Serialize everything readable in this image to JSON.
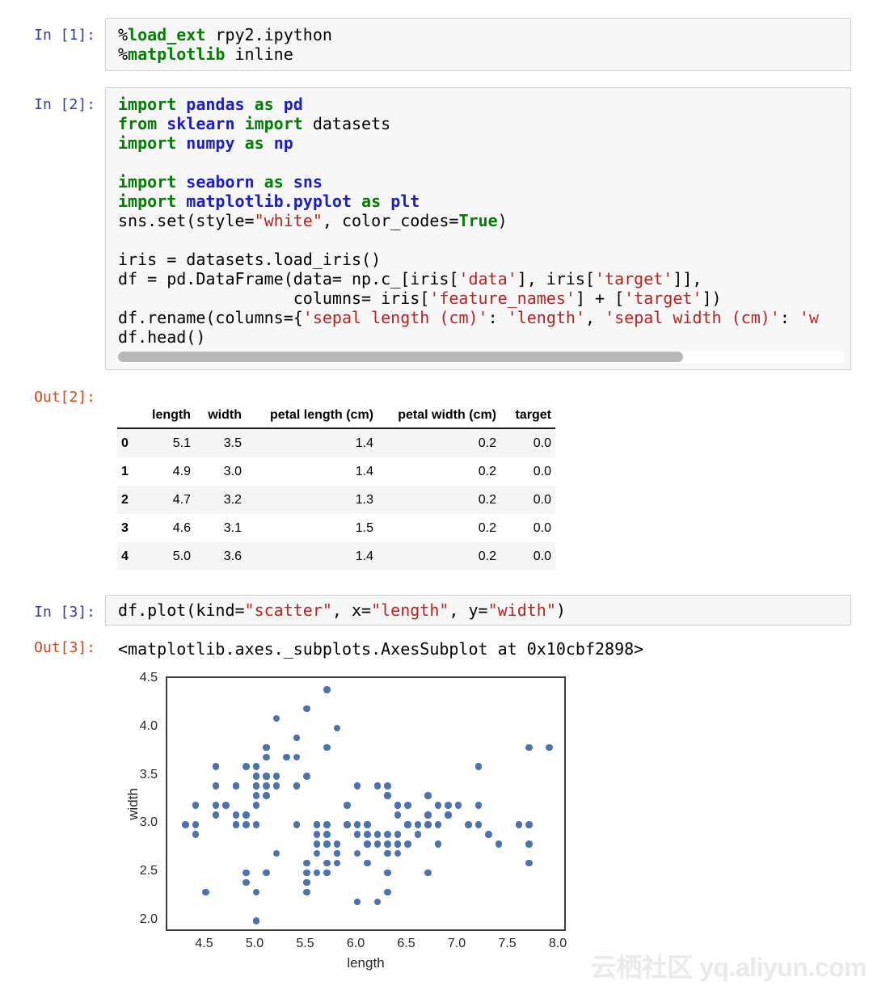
{
  "prompts": {
    "in1": "In [1]:",
    "in2": "In [2]:",
    "in3": "In [3]:",
    "out2": "Out[2]:",
    "out3": "Out[3]:"
  },
  "colors": {
    "in_prompt": "#303F9F",
    "out_prompt": "#D84315",
    "keyword": "#008000",
    "module": "#1c1ccf",
    "string": "#BA2121",
    "cell_bg": "#f7f7f7",
    "cell_border": "#cfcfcf",
    "marker": "#4C72B0"
  },
  "cells": {
    "in1": [
      [
        [
          "o",
          "%"
        ],
        [
          "m",
          "load_ext"
        ],
        [
          "o",
          " rpy2.ipython"
        ]
      ],
      [
        [
          "o",
          "%"
        ],
        [
          "m",
          "matplotlib"
        ],
        [
          "o",
          " inline"
        ]
      ]
    ],
    "in2": [
      [
        [
          "k",
          "import"
        ],
        [
          "o",
          " "
        ],
        [
          "d",
          "pandas"
        ],
        [
          "o",
          " "
        ],
        [
          "k",
          "as"
        ],
        [
          "o",
          " "
        ],
        [
          "d",
          "pd"
        ]
      ],
      [
        [
          "k",
          "from"
        ],
        [
          "o",
          " "
        ],
        [
          "d",
          "sklearn"
        ],
        [
          "o",
          " "
        ],
        [
          "k",
          "import"
        ],
        [
          "o",
          " datasets"
        ]
      ],
      [
        [
          "k",
          "import"
        ],
        [
          "o",
          " "
        ],
        [
          "d",
          "numpy"
        ],
        [
          "o",
          " "
        ],
        [
          "k",
          "as"
        ],
        [
          "o",
          " "
        ],
        [
          "d",
          "np"
        ]
      ],
      [],
      [
        [
          "k",
          "import"
        ],
        [
          "o",
          " "
        ],
        [
          "d",
          "seaborn"
        ],
        [
          "o",
          " "
        ],
        [
          "k",
          "as"
        ],
        [
          "o",
          " "
        ],
        [
          "d",
          "sns"
        ]
      ],
      [
        [
          "k",
          "import"
        ],
        [
          "o",
          " "
        ],
        [
          "d",
          "matplotlib.pyplot"
        ],
        [
          "o",
          " "
        ],
        [
          "k",
          "as"
        ],
        [
          "o",
          " "
        ],
        [
          "d",
          "plt"
        ]
      ],
      [
        [
          "o",
          "sns.set(style="
        ],
        [
          "s",
          "\"white\""
        ],
        [
          "o",
          ", color_codes="
        ],
        [
          "k",
          "True"
        ],
        [
          "o",
          ")"
        ]
      ],
      [],
      [
        [
          "o",
          "iris = datasets.load_iris()"
        ]
      ],
      [
        [
          "o",
          "df = pd.DataFrame(data= np.c_[iris["
        ],
        [
          "s",
          "'data'"
        ],
        [
          "o",
          "], iris["
        ],
        [
          "s",
          "'target'"
        ],
        [
          "o",
          "]],"
        ]
      ],
      [
        [
          "o",
          "                  columns= iris["
        ],
        [
          "s",
          "'feature_names'"
        ],
        [
          "o",
          "] + ["
        ],
        [
          "s",
          "'target'"
        ],
        [
          "o",
          "])"
        ]
      ],
      [
        [
          "o",
          "df.rename(columns={"
        ],
        [
          "s",
          "'sepal length (cm)'"
        ],
        [
          "o",
          ": "
        ],
        [
          "s",
          "'length'"
        ],
        [
          "o",
          ", "
        ],
        [
          "s",
          "'sepal width (cm)'"
        ],
        [
          "o",
          ": "
        ],
        [
          "s",
          "'w"
        ]
      ],
      [
        [
          "o",
          "df.head()"
        ]
      ]
    ],
    "in3": [
      [
        [
          "o",
          "df.plot(kind="
        ],
        [
          "s",
          "\"scatter\""
        ],
        [
          "o",
          ", x="
        ],
        [
          "s",
          "\"length\""
        ],
        [
          "o",
          ", y="
        ],
        [
          "s",
          "\"width\""
        ],
        [
          "o",
          ")"
        ]
      ]
    ]
  },
  "out3_text": "<matplotlib.axes._subplots.AxesSubplot at 0x10cbf2898>",
  "table": {
    "index": [
      "0",
      "1",
      "2",
      "3",
      "4"
    ],
    "columns": [
      "length",
      "width",
      "petal length (cm)",
      "petal width (cm)",
      "target"
    ],
    "rows": [
      [
        "5.1",
        "3.5",
        "1.4",
        "0.2",
        "0.0"
      ],
      [
        "4.9",
        "3.0",
        "1.4",
        "0.2",
        "0.0"
      ],
      [
        "4.7",
        "3.2",
        "1.3",
        "0.2",
        "0.0"
      ],
      [
        "4.6",
        "3.1",
        "1.5",
        "0.2",
        "0.0"
      ],
      [
        "5.0",
        "3.6",
        "1.4",
        "0.2",
        "0.0"
      ]
    ]
  },
  "chart_data": {
    "type": "scatter",
    "xlabel": "length",
    "ylabel": "width",
    "xlim": [
      4.12,
      8.08
    ],
    "ylim": [
      1.88,
      4.52
    ],
    "xticks": [
      4.5,
      5.0,
      5.5,
      6.0,
      6.5,
      7.0,
      7.5,
      8.0
    ],
    "yticks": [
      2.0,
      2.5,
      3.0,
      3.5,
      4.0,
      4.5
    ],
    "grid": false,
    "legend": false,
    "marker_color": "#4C72B0",
    "points": [
      [
        5.1,
        3.5
      ],
      [
        4.9,
        3.0
      ],
      [
        4.7,
        3.2
      ],
      [
        4.6,
        3.1
      ],
      [
        5.0,
        3.6
      ],
      [
        5.4,
        3.9
      ],
      [
        4.6,
        3.4
      ],
      [
        5.0,
        3.4
      ],
      [
        4.4,
        2.9
      ],
      [
        4.9,
        3.1
      ],
      [
        5.4,
        3.7
      ],
      [
        4.8,
        3.4
      ],
      [
        4.8,
        3.0
      ],
      [
        4.3,
        3.0
      ],
      [
        5.8,
        4.0
      ],
      [
        5.7,
        4.4
      ],
      [
        5.4,
        3.9
      ],
      [
        5.1,
        3.5
      ],
      [
        5.7,
        3.8
      ],
      [
        5.1,
        3.8
      ],
      [
        5.4,
        3.4
      ],
      [
        5.1,
        3.7
      ],
      [
        4.6,
        3.6
      ],
      [
        5.1,
        3.3
      ],
      [
        4.8,
        3.4
      ],
      [
        5.0,
        3.0
      ],
      [
        5.0,
        3.4
      ],
      [
        5.2,
        3.5
      ],
      [
        5.2,
        3.4
      ],
      [
        4.7,
        3.2
      ],
      [
        4.8,
        3.1
      ],
      [
        5.4,
        3.4
      ],
      [
        5.2,
        4.1
      ],
      [
        5.5,
        4.2
      ],
      [
        4.9,
        3.1
      ],
      [
        5.0,
        3.2
      ],
      [
        5.5,
        3.5
      ],
      [
        4.9,
        3.6
      ],
      [
        4.4,
        3.0
      ],
      [
        5.1,
        3.4
      ],
      [
        5.0,
        3.5
      ],
      [
        4.5,
        2.3
      ],
      [
        4.4,
        3.2
      ],
      [
        5.0,
        3.5
      ],
      [
        5.1,
        3.8
      ],
      [
        4.8,
        3.0
      ],
      [
        5.1,
        3.8
      ],
      [
        4.6,
        3.2
      ],
      [
        5.3,
        3.7
      ],
      [
        5.0,
        3.3
      ],
      [
        7.0,
        3.2
      ],
      [
        6.4,
        3.2
      ],
      [
        6.9,
        3.1
      ],
      [
        5.5,
        2.3
      ],
      [
        6.5,
        2.8
      ],
      [
        5.7,
        2.8
      ],
      [
        6.3,
        3.3
      ],
      [
        4.9,
        2.4
      ],
      [
        6.6,
        2.9
      ],
      [
        5.2,
        2.7
      ],
      [
        5.0,
        2.0
      ],
      [
        5.9,
        3.0
      ],
      [
        6.0,
        2.2
      ],
      [
        6.1,
        2.9
      ],
      [
        5.6,
        2.9
      ],
      [
        6.7,
        3.1
      ],
      [
        5.6,
        3.0
      ],
      [
        5.8,
        2.7
      ],
      [
        6.2,
        2.2
      ],
      [
        5.6,
        2.5
      ],
      [
        5.9,
        3.2
      ],
      [
        6.1,
        2.8
      ],
      [
        6.3,
        2.5
      ],
      [
        6.1,
        2.8
      ],
      [
        6.4,
        2.9
      ],
      [
        6.6,
        3.0
      ],
      [
        6.8,
        2.8
      ],
      [
        6.7,
        3.0
      ],
      [
        6.0,
        2.9
      ],
      [
        5.7,
        2.6
      ],
      [
        5.5,
        2.4
      ],
      [
        5.5,
        2.4
      ],
      [
        5.8,
        2.7
      ],
      [
        6.0,
        2.7
      ],
      [
        5.4,
        3.0
      ],
      [
        6.0,
        3.4
      ],
      [
        6.7,
        3.1
      ],
      [
        6.3,
        2.3
      ],
      [
        5.6,
        3.0
      ],
      [
        5.5,
        2.5
      ],
      [
        5.5,
        2.6
      ],
      [
        6.1,
        3.0
      ],
      [
        5.8,
        2.6
      ],
      [
        5.0,
        2.3
      ],
      [
        5.6,
        2.7
      ],
      [
        5.7,
        3.0
      ],
      [
        5.7,
        2.9
      ],
      [
        6.2,
        2.9
      ],
      [
        5.1,
        2.5
      ],
      [
        5.7,
        2.8
      ],
      [
        6.3,
        3.3
      ],
      [
        5.8,
        2.7
      ],
      [
        7.1,
        3.0
      ],
      [
        6.3,
        2.9
      ],
      [
        6.5,
        3.0
      ],
      [
        7.6,
        3.0
      ],
      [
        4.9,
        2.5
      ],
      [
        7.3,
        2.9
      ],
      [
        6.7,
        2.5
      ],
      [
        7.2,
        3.6
      ],
      [
        6.5,
        3.2
      ],
      [
        6.4,
        2.7
      ],
      [
        6.8,
        3.0
      ],
      [
        5.7,
        2.5
      ],
      [
        5.8,
        2.8
      ],
      [
        6.4,
        3.2
      ],
      [
        6.5,
        3.0
      ],
      [
        7.7,
        3.8
      ],
      [
        7.7,
        2.6
      ],
      [
        6.0,
        2.2
      ],
      [
        6.9,
        3.2
      ],
      [
        5.6,
        2.8
      ],
      [
        7.7,
        2.8
      ],
      [
        6.3,
        2.7
      ],
      [
        6.7,
        3.3
      ],
      [
        7.2,
        3.2
      ],
      [
        6.2,
        2.8
      ],
      [
        6.1,
        3.0
      ],
      [
        6.4,
        2.8
      ],
      [
        7.2,
        3.0
      ],
      [
        7.4,
        2.8
      ],
      [
        7.9,
        3.8
      ],
      [
        6.4,
        2.8
      ],
      [
        6.3,
        2.8
      ],
      [
        6.1,
        2.6
      ],
      [
        7.7,
        3.0
      ],
      [
        6.3,
        3.4
      ],
      [
        6.4,
        3.1
      ],
      [
        6.0,
        3.0
      ],
      [
        6.9,
        3.1
      ],
      [
        6.7,
        3.1
      ],
      [
        6.9,
        3.1
      ],
      [
        5.8,
        2.7
      ],
      [
        6.8,
        3.2
      ],
      [
        6.7,
        3.3
      ],
      [
        6.7,
        3.0
      ],
      [
        6.3,
        2.5
      ],
      [
        6.5,
        3.0
      ],
      [
        6.2,
        3.4
      ],
      [
        5.9,
        3.0
      ]
    ]
  },
  "watermark": "云栖社区 yq.aliyun.com"
}
